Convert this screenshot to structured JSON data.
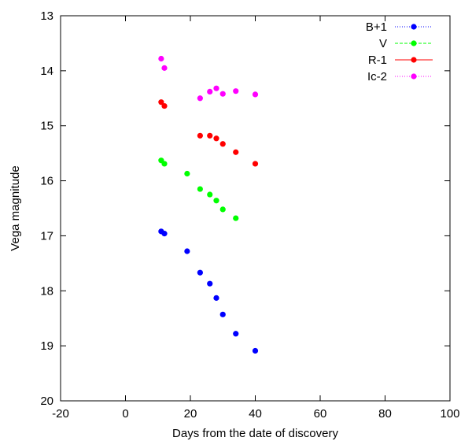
{
  "chart_data": {
    "type": "scatter",
    "title": "",
    "xlabel": "Days from the date of discovery",
    "ylabel": "Vega magnitude",
    "xlim": [
      -20,
      100
    ],
    "ylim": [
      20,
      13
    ],
    "y_inverted": true,
    "grid": false,
    "legend_position": "top-right",
    "x_ticks": [
      "-20",
      "0",
      "20",
      "40",
      "60",
      "80",
      "100"
    ],
    "y_ticks": [
      "13",
      "14",
      "15",
      "16",
      "17",
      "18",
      "19",
      "20"
    ],
    "series": [
      {
        "name": "B+1",
        "color": "#0000ff",
        "line_style": "dotted",
        "points": [
          [
            11,
            16.92
          ],
          [
            12,
            16.96
          ],
          [
            19,
            17.28
          ],
          [
            23,
            17.67
          ],
          [
            26,
            17.87
          ],
          [
            28,
            18.13
          ],
          [
            30,
            18.43
          ],
          [
            34,
            18.78
          ],
          [
            40,
            19.09
          ]
        ]
      },
      {
        "name": "V",
        "color": "#00ff00",
        "line_style": "dashed",
        "points": [
          [
            11,
            15.63
          ],
          [
            12,
            15.69
          ],
          [
            19,
            15.87
          ],
          [
            23,
            16.15
          ],
          [
            26,
            16.25
          ],
          [
            28,
            16.36
          ],
          [
            30,
            16.52
          ],
          [
            34,
            16.68
          ]
        ]
      },
      {
        "name": "R-1",
        "color": "#ff0000",
        "line_style": "solid",
        "points": [
          [
            11,
            14.57
          ],
          [
            12,
            14.64
          ],
          [
            23,
            15.18
          ],
          [
            26,
            15.18
          ],
          [
            28,
            15.23
          ],
          [
            30,
            15.33
          ],
          [
            34,
            15.48
          ],
          [
            40,
            15.69
          ]
        ]
      },
      {
        "name": "Ic-2",
        "color": "#ff00ff",
        "line_style": "dotted",
        "points": [
          [
            11,
            13.78
          ],
          [
            12,
            13.95
          ],
          [
            23,
            14.5
          ],
          [
            26,
            14.38
          ],
          [
            28,
            14.32
          ],
          [
            30,
            14.42
          ],
          [
            34,
            14.37
          ],
          [
            40,
            14.43
          ]
        ]
      }
    ]
  }
}
